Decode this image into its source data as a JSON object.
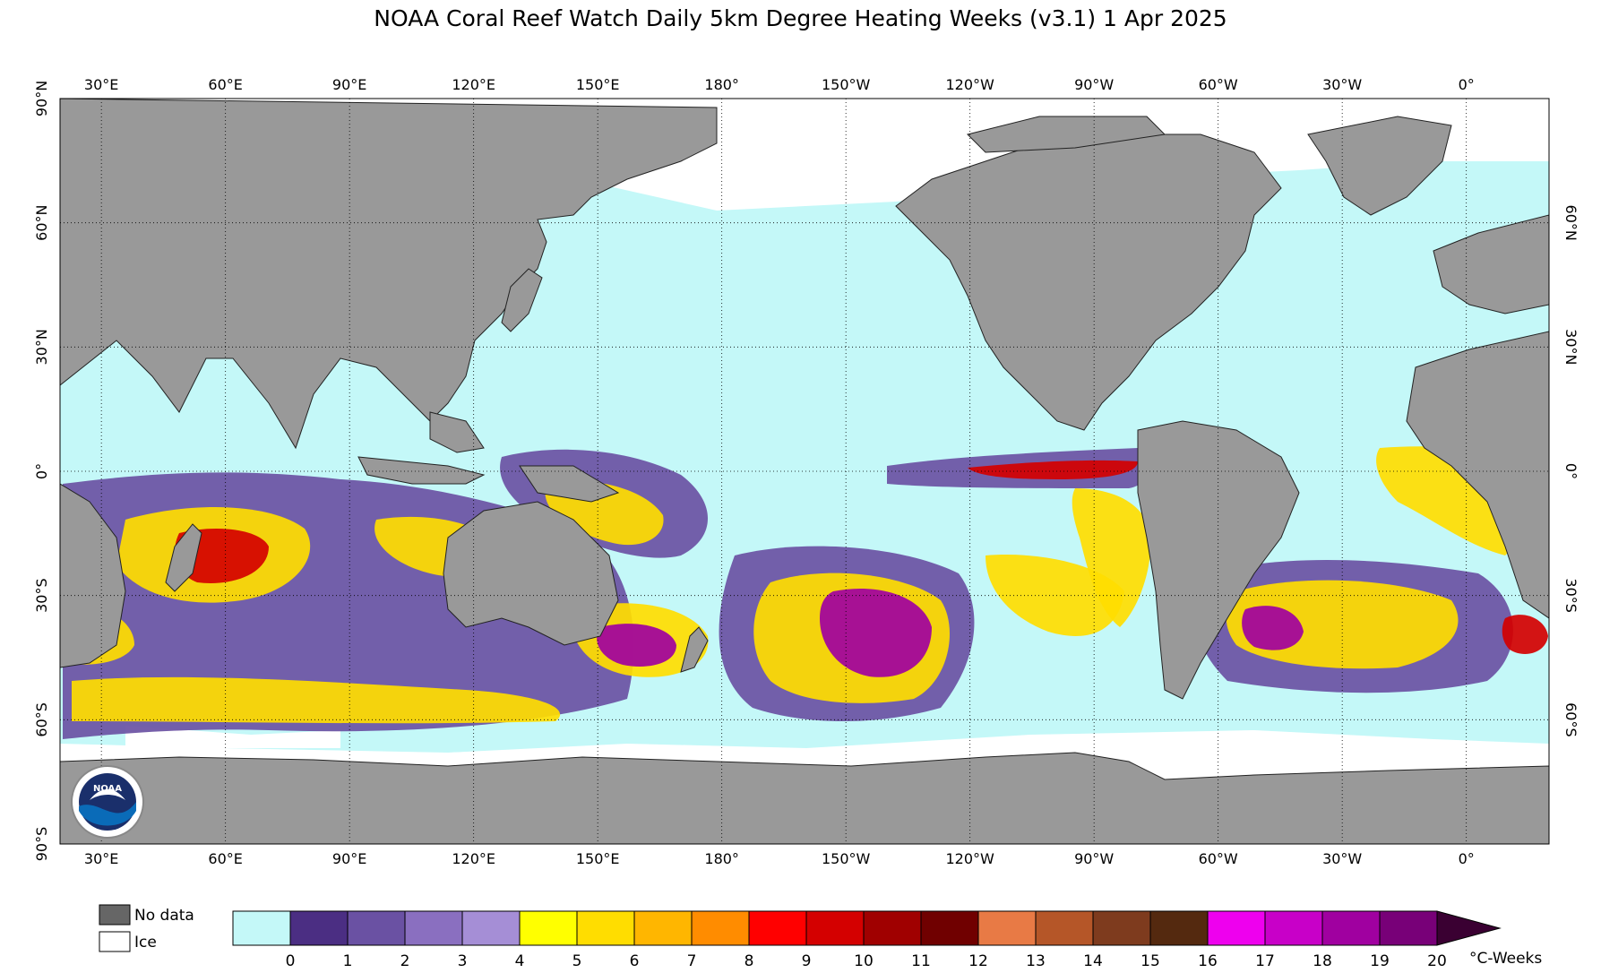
{
  "title": "NOAA Coral Reef Watch Daily 5km Degree Heating Weeks  (v3.1)   1 Apr 2025",
  "map": {
    "lon_ticks": [
      "30°E",
      "60°E",
      "90°E",
      "120°E",
      "150°E",
      "180°",
      "150°W",
      "120°W",
      "90°W",
      "60°W",
      "30°W",
      "0°"
    ],
    "lat_ticks_left": [
      "90°N",
      "60°N",
      "30°N",
      "0°",
      "30°S",
      "60°S",
      "90°S"
    ],
    "lat_ticks_right": [
      "60°N",
      "30°N",
      "0°",
      "30°S",
      "60°S"
    ],
    "colors": {
      "ocean": "#c4f8f8",
      "land": "#999999",
      "ice": "#ffffff",
      "grid": "#000000"
    }
  },
  "legend": {
    "no_data_label": "No data",
    "ice_label": "Ice",
    "no_data_color": "#666666",
    "ice_color": "#ffffff",
    "unit": "°C-Weeks",
    "tick_labels": [
      "0",
      "1",
      "2",
      "3",
      "4",
      "5",
      "6",
      "7",
      "8",
      "9",
      "10",
      "11",
      "12",
      "13",
      "14",
      "15",
      "16",
      "17",
      "18",
      "19",
      "20"
    ],
    "colors": [
      "#c4f8f8",
      "#4b2e83",
      "#6a51a3",
      "#8a6fc0",
      "#a58ed6",
      "#ffff00",
      "#ffdd00",
      "#ffb600",
      "#ff8c00",
      "#ff0000",
      "#d40000",
      "#a00000",
      "#700000",
      "#e87a45",
      "#b55628",
      "#7e3b1e",
      "#54290f",
      "#ee00ee",
      "#c800c8",
      "#a000a0",
      "#780078"
    ],
    "overflow_color": "#3a0032"
  },
  "logo": {
    "text": "NOAA",
    "primary": "#1a2f6b",
    "accent": "#0a6bb8"
  }
}
